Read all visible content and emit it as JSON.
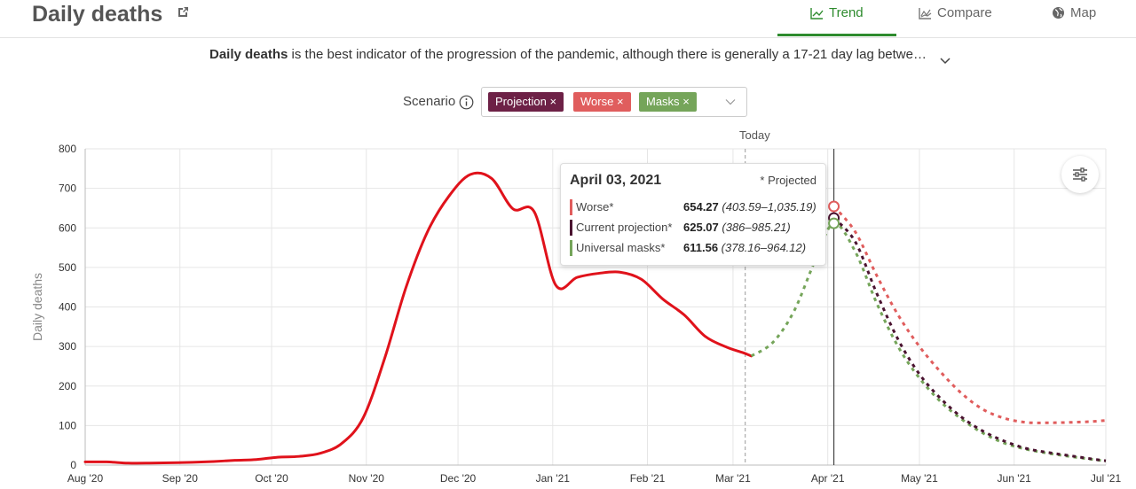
{
  "header": {
    "title": "Daily deaths",
    "tabs": [
      {
        "label": "Trend",
        "icon": "trend-line-icon",
        "active": true
      },
      {
        "label": "Compare",
        "icon": "compare-chart-icon",
        "active": false
      },
      {
        "label": "Map",
        "icon": "globe-icon",
        "active": false
      }
    ]
  },
  "description": {
    "bold": "Daily deaths",
    "text": " is the best indicator of the progression of the pandemic, although there is generally a 17-21 day lag betwe…"
  },
  "scenario": {
    "label": "Scenario",
    "chips": [
      {
        "label": "Projection",
        "color": "#6d2146"
      },
      {
        "label": "Worse",
        "color": "#e05d5d"
      },
      {
        "label": "Masks",
        "color": "#75a55a"
      }
    ]
  },
  "today_label": "Today",
  "tooltip": {
    "date": "April 03, 2021",
    "note": "* Projected",
    "rows": [
      {
        "name": "Worse*",
        "value": "654.27",
        "range": "(403.59–1,035.19)",
        "color": "#e05d5d"
      },
      {
        "name": "Current projection*",
        "value": "625.07",
        "range": "(386–985.21)",
        "color": "#4a1330"
      },
      {
        "name": "Universal masks*",
        "value": "611.56",
        "range": "(378.16–964.12)",
        "color": "#75a55a"
      }
    ]
  },
  "colors": {
    "observed": "#e0121b",
    "worse": "#e05d5d",
    "projection": "#4a1330",
    "masks": "#75a55a",
    "accent": "#2e8b2e"
  },
  "chart_data": {
    "type": "line",
    "ylabel": "Daily deaths",
    "xlabel": "",
    "ylim": [
      0,
      800
    ],
    "yticks": [
      0,
      100,
      200,
      300,
      400,
      500,
      600,
      700,
      800
    ],
    "xticks": [
      {
        "date": "2020-08-01",
        "label": "Aug '20"
      },
      {
        "date": "2020-09-01",
        "label": "Sep '20"
      },
      {
        "date": "2020-10-01",
        "label": "Oct '20"
      },
      {
        "date": "2020-11-01",
        "label": "Nov '20"
      },
      {
        "date": "2020-12-01",
        "label": "Dec '20"
      },
      {
        "date": "2021-01-01",
        "label": "Jan '21"
      },
      {
        "date": "2021-02-01",
        "label": "Feb '21"
      },
      {
        "date": "2021-03-01",
        "label": "Mar '21"
      },
      {
        "date": "2021-04-01",
        "label": "Apr '21"
      },
      {
        "date": "2021-05-01",
        "label": "May '21"
      },
      {
        "date": "2021-06-01",
        "label": "Jun '21"
      },
      {
        "date": "2021-07-01",
        "label": "Jul '21"
      }
    ],
    "xlim": [
      "2020-08-01",
      "2021-07-01"
    ],
    "today": "2021-03-05",
    "hover_date": "2021-04-03",
    "grid": true,
    "series": [
      {
        "name": "",
        "style": "solid",
        "color": "#e0121b",
        "points": [
          [
            "2020-08-01",
            8
          ],
          [
            "2020-08-08",
            8
          ],
          [
            "2020-08-15",
            5
          ],
          [
            "2020-08-22",
            5
          ],
          [
            "2020-08-29",
            6
          ],
          [
            "2020-09-05",
            7
          ],
          [
            "2020-09-12",
            9
          ],
          [
            "2020-09-19",
            12
          ],
          [
            "2020-09-26",
            14
          ],
          [
            "2020-10-03",
            20
          ],
          [
            "2020-10-10",
            22
          ],
          [
            "2020-10-17",
            30
          ],
          [
            "2020-10-24",
            55
          ],
          [
            "2020-10-31",
            120
          ],
          [
            "2020-11-07",
            270
          ],
          [
            "2020-11-14",
            450
          ],
          [
            "2020-11-21",
            590
          ],
          [
            "2020-11-28",
            680
          ],
          [
            "2020-12-05",
            735
          ],
          [
            "2020-12-12",
            725
          ],
          [
            "2020-12-19",
            648
          ],
          [
            "2020-12-26",
            640
          ],
          [
            "2021-01-02",
            455
          ],
          [
            "2021-01-09",
            475
          ],
          [
            "2021-01-16",
            485
          ],
          [
            "2021-01-23",
            488
          ],
          [
            "2021-01-30",
            470
          ],
          [
            "2021-02-06",
            420
          ],
          [
            "2021-02-13",
            380
          ],
          [
            "2021-02-20",
            325
          ],
          [
            "2021-02-27",
            298
          ],
          [
            "2021-03-04",
            285
          ],
          [
            "2021-03-07",
            276
          ]
        ]
      },
      {
        "name": "Universal masks",
        "style": "dashed",
        "color": "#75a55a",
        "points": [
          [
            "2021-03-07",
            276
          ],
          [
            "2021-03-14",
            310
          ],
          [
            "2021-03-21",
            390
          ],
          [
            "2021-03-28",
            520
          ],
          [
            "2021-04-03",
            611.56
          ],
          [
            "2021-04-10",
            540
          ],
          [
            "2021-04-17",
            410
          ],
          [
            "2021-04-24",
            300
          ],
          [
            "2021-05-01",
            220
          ],
          [
            "2021-05-08",
            160
          ],
          [
            "2021-05-15",
            115
          ],
          [
            "2021-05-22",
            80
          ],
          [
            "2021-05-29",
            55
          ],
          [
            "2021-06-05",
            40
          ],
          [
            "2021-06-12",
            30
          ],
          [
            "2021-06-19",
            22
          ],
          [
            "2021-06-26",
            15
          ],
          [
            "2021-07-01",
            10
          ]
        ]
      },
      {
        "name": "Current projection",
        "style": "dashed",
        "color": "#4a1330",
        "points": [
          [
            "2021-04-03",
            625.07
          ],
          [
            "2021-04-10",
            565
          ],
          [
            "2021-04-17",
            435
          ],
          [
            "2021-04-24",
            318
          ],
          [
            "2021-05-01",
            230
          ],
          [
            "2021-05-08",
            168
          ],
          [
            "2021-05-15",
            120
          ],
          [
            "2021-05-22",
            85
          ],
          [
            "2021-05-29",
            60
          ],
          [
            "2021-06-05",
            42
          ],
          [
            "2021-06-12",
            32
          ],
          [
            "2021-06-19",
            24
          ],
          [
            "2021-06-26",
            16
          ],
          [
            "2021-07-01",
            11
          ]
        ]
      },
      {
        "name": "Worse",
        "style": "dashed",
        "color": "#e05d5d",
        "points": [
          [
            "2021-04-03",
            654.27
          ],
          [
            "2021-04-10",
            590
          ],
          [
            "2021-04-17",
            480
          ],
          [
            "2021-04-24",
            380
          ],
          [
            "2021-05-01",
            300
          ],
          [
            "2021-05-08",
            235
          ],
          [
            "2021-05-15",
            180
          ],
          [
            "2021-05-22",
            140
          ],
          [
            "2021-05-29",
            118
          ],
          [
            "2021-06-05",
            108
          ],
          [
            "2021-06-12",
            107
          ],
          [
            "2021-06-19",
            108
          ],
          [
            "2021-06-26",
            110
          ],
          [
            "2021-07-01",
            113
          ]
        ]
      }
    ]
  }
}
